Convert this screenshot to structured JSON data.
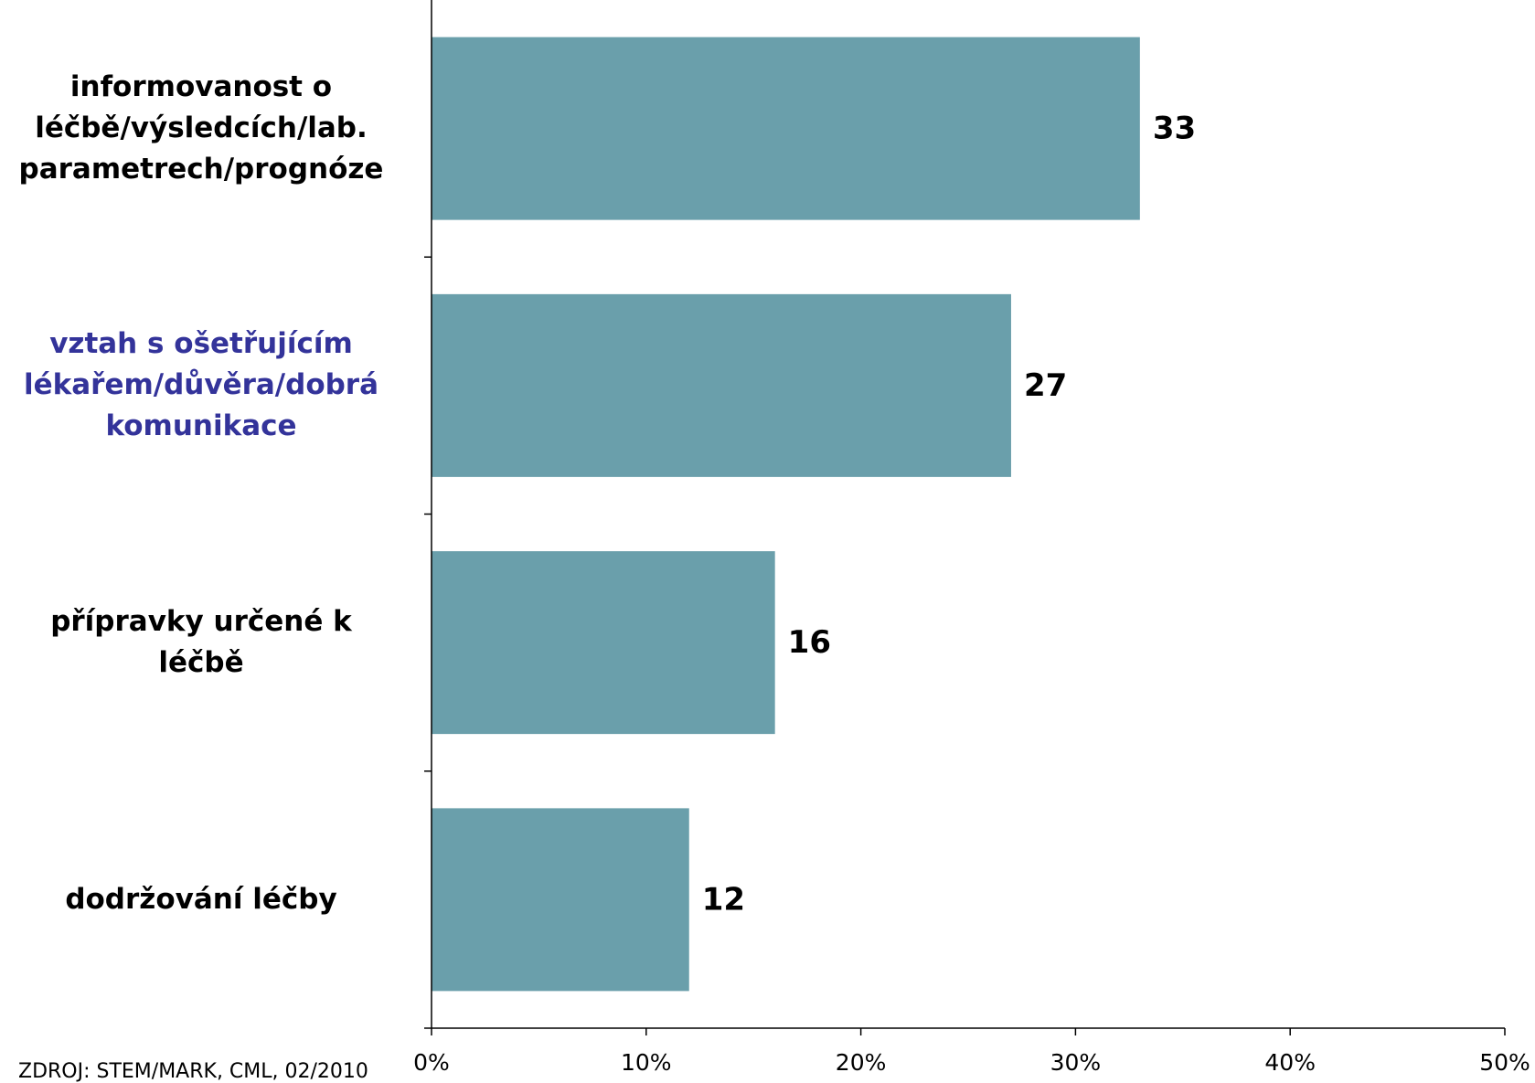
{
  "chart_data": {
    "type": "bar",
    "orientation": "horizontal",
    "categories": [
      [
        "informovanost o",
        "léčbě/výsledcích/lab.",
        "parametrech/prognóze"
      ],
      [
        "vztah s ošetřujícím",
        "lékařem/důvěra/dobrá",
        "komunikace"
      ],
      [
        "přípravky určené k",
        "léčbě"
      ],
      [
        "dodržování léčby"
      ]
    ],
    "values": [
      33,
      27,
      16,
      12
    ],
    "value_labels": [
      "33",
      "27",
      "16",
      "12"
    ],
    "xlim": [
      0,
      50
    ],
    "xticks": [
      0,
      10,
      20,
      30,
      40,
      50
    ],
    "xtick_labels": [
      "0%",
      "10%",
      "20%",
      "30%",
      "40%",
      "50%"
    ],
    "title": "",
    "xlabel": "",
    "ylabel": "",
    "grid": false,
    "legend": "none"
  },
  "colors": {
    "bar": "#6a9fab",
    "label_default": "#000000",
    "label_highlight": "#33339a",
    "axis": "#000000"
  },
  "highlight_index": 1,
  "source": "ZDROJ: STEM/MARK, CML, 02/2010"
}
